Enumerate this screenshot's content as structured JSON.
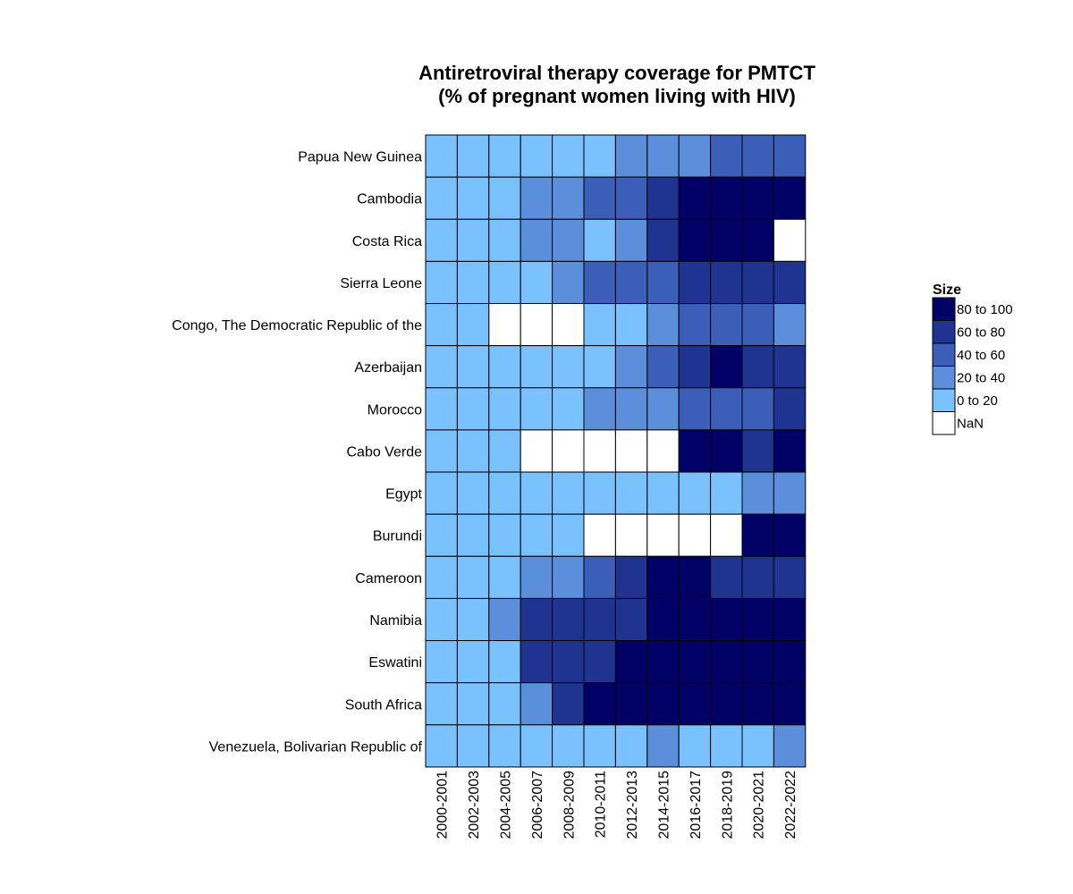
{
  "chart_data": {
    "type": "heatmap",
    "title_lines": [
      "Antiretroviral therapy coverage for PMTCT",
      "(% of pregnant women living with HIV)"
    ],
    "columns": [
      "2000-2001",
      "2002-2003",
      "2004-2005",
      "2006-2007",
      "2008-2009",
      "2010-2011",
      "2012-2013",
      "2014-2015",
      "2016-2017",
      "2018-2019",
      "2020-2021",
      "2022-2022"
    ],
    "rows": [
      "Papua New Guinea",
      "Cambodia",
      "Costa Rica",
      "Sierra Leone",
      "Congo, The Democratic Republic of the",
      "Azerbaijan",
      "Morocco",
      "Cabo Verde",
      "Egypt",
      "Burundi",
      "Cameroon",
      "Namibia",
      "Eswatini",
      "South Africa",
      "Venezuela, Bolivarian Republic of"
    ],
    "cells": [
      [
        0,
        0,
        0,
        0,
        0,
        0,
        1,
        1,
        1,
        2,
        2,
        2
      ],
      [
        0,
        0,
        0,
        1,
        1,
        2,
        2,
        3,
        4,
        4,
        4,
        4
      ],
      [
        0,
        0,
        0,
        1,
        1,
        0,
        1,
        3,
        4,
        4,
        4,
        -1
      ],
      [
        0,
        0,
        0,
        0,
        1,
        2,
        2,
        2,
        3,
        3,
        3,
        3
      ],
      [
        0,
        0,
        -1,
        -1,
        -1,
        0,
        0,
        1,
        2,
        2,
        2,
        1
      ],
      [
        0,
        0,
        0,
        0,
        0,
        0,
        1,
        2,
        3,
        4,
        3,
        3
      ],
      [
        0,
        0,
        0,
        0,
        0,
        1,
        1,
        1,
        2,
        2,
        2,
        3
      ],
      [
        0,
        0,
        0,
        -1,
        -1,
        -1,
        -1,
        -1,
        4,
        4,
        3,
        4
      ],
      [
        0,
        0,
        0,
        0,
        0,
        0,
        0,
        0,
        0,
        0,
        1,
        1
      ],
      [
        0,
        0,
        0,
        0,
        0,
        -1,
        -1,
        -1,
        -1,
        -1,
        4,
        4
      ],
      [
        0,
        0,
        0,
        1,
        1,
        2,
        3,
        4,
        4,
        3,
        3,
        3
      ],
      [
        0,
        0,
        1,
        3,
        3,
        3,
        3,
        4,
        4,
        4,
        4,
        4
      ],
      [
        0,
        0,
        0,
        3,
        3,
        3,
        4,
        4,
        4,
        4,
        4,
        4
      ],
      [
        0,
        0,
        0,
        1,
        3,
        4,
        4,
        4,
        4,
        4,
        4,
        4
      ],
      [
        0,
        0,
        0,
        0,
        0,
        0,
        0,
        1,
        0,
        0,
        0,
        1
      ]
    ],
    "cell_encoding": "bin index into legend.bins: 0 = '0 to 20', 1 = '20 to 40', 2 = '40 to 60', 3 = '60 to 80', 4 = '80 to 100', -1 = 'NaN'",
    "legend": {
      "title": "Size",
      "position": "right",
      "entries": [
        "80 to 100",
        "60 to 80",
        "40 to 60",
        "20 to 40",
        "0 to 20",
        "NaN"
      ],
      "colors": [
        "#000066",
        "#1f3390",
        "#3b5eb8",
        "#5b8fdc",
        "#79c1ff",
        "#ffffff"
      ]
    },
    "bins": [
      "0 to 20",
      "20 to 40",
      "40 to 60",
      "60 to 80",
      "80 to 100"
    ],
    "bin_colors": [
      "#79c1ff",
      "#5b8fdc",
      "#3b5eb8",
      "#1f3390",
      "#000066"
    ],
    "nan_color": "#ffffff",
    "grid": false
  }
}
